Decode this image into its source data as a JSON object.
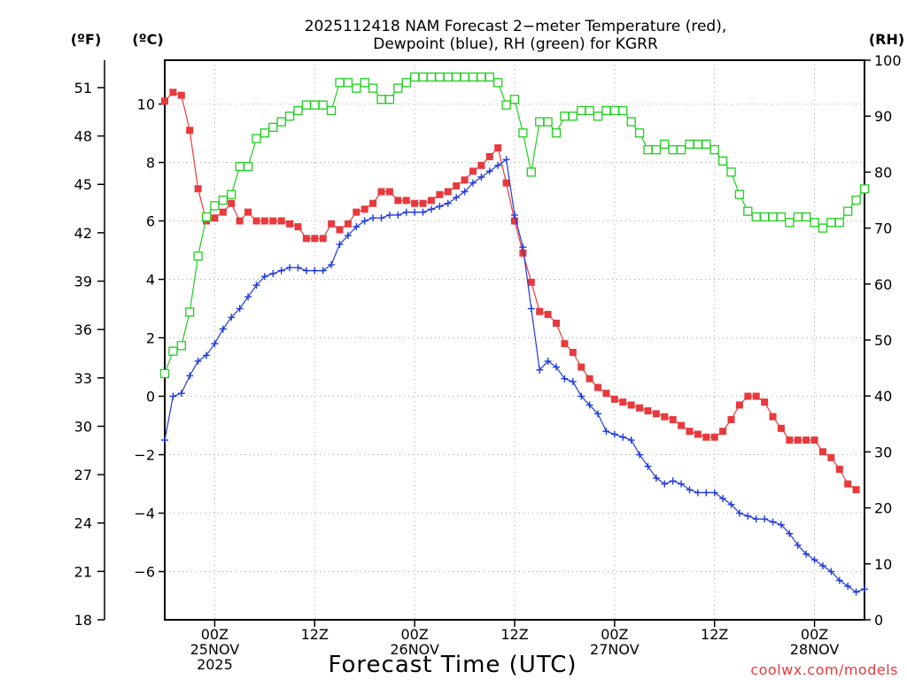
{
  "chart_data": {
    "type": "line",
    "title": "2025112418 NAM Forecast 2-meter Temperature (red), Dewpoint (blue), RH (green) for KGRR",
    "title_lines": [
      "2025112418 NAM Forecast 2−meter Temperature (red),",
      "Dewpoint (blue), RH (green) for KGRR"
    ],
    "xlabel": "Forecast Time (UTC)",
    "credit": "coolwx.com/models",
    "units": {
      "fahrenheit": "(ºF)",
      "celsius": "(ºC)",
      "rh": "(RH)"
    },
    "x_unit": "forecast hour",
    "x_range": [
      0,
      84
    ],
    "x_tick_labels": [
      {
        "hour": 6,
        "lines": [
          "00Z",
          "25NOV",
          "2025"
        ]
      },
      {
        "hour": 18,
        "lines": [
          "12Z"
        ]
      },
      {
        "hour": 30,
        "lines": [
          "00Z",
          "26NOV"
        ]
      },
      {
        "hour": 42,
        "lines": [
          "12Z"
        ]
      },
      {
        "hour": 54,
        "lines": [
          "00Z",
          "27NOV"
        ]
      },
      {
        "hour": 66,
        "lines": [
          "12Z"
        ]
      },
      {
        "hour": 78,
        "lines": [
          "00Z",
          "28NOV"
        ]
      }
    ],
    "celsius_axis": {
      "range": [
        -7.65,
        11.5
      ],
      "ticks": [
        -6,
        -4,
        -2,
        0,
        2,
        4,
        6,
        8,
        10
      ],
      "tick_labels": [
        "−6",
        "−4",
        "−2",
        "0",
        "2",
        "4",
        "6",
        "8",
        "10"
      ]
    },
    "fahrenheit_axis": {
      "range": [
        18,
        52.7
      ],
      "ticks": [
        18,
        21,
        24,
        27,
        30,
        33,
        36,
        39,
        42,
        45,
        48,
        51
      ]
    },
    "rh_axis": {
      "range": [
        0,
        100
      ],
      "ticks": [
        0,
        10,
        20,
        30,
        40,
        50,
        60,
        70,
        80,
        90,
        100
      ]
    },
    "grid": true,
    "series": [
      {
        "name": "Temperature",
        "color": "#e8393c",
        "axis": "celsius",
        "marker": "filled-square",
        "values": [
          [
            0,
            10.1
          ],
          [
            1,
            10.4
          ],
          [
            2,
            10.3
          ],
          [
            3,
            9.1
          ],
          [
            4,
            7.1
          ],
          [
            5,
            6.0
          ],
          [
            6,
            6.1
          ],
          [
            7,
            6.3
          ],
          [
            8,
            6.6
          ],
          [
            9,
            6.0
          ],
          [
            10,
            6.3
          ],
          [
            11,
            6.0
          ],
          [
            12,
            6.0
          ],
          [
            13,
            6.0
          ],
          [
            14,
            6.0
          ],
          [
            15,
            5.9
          ],
          [
            16,
            5.8
          ],
          [
            17,
            5.4
          ],
          [
            18,
            5.4
          ],
          [
            19,
            5.4
          ],
          [
            20,
            5.9
          ],
          [
            21,
            5.7
          ],
          [
            22,
            5.9
          ],
          [
            23,
            6.3
          ],
          [
            24,
            6.4
          ],
          [
            25,
            6.6
          ],
          [
            26,
            7.0
          ],
          [
            27,
            7.0
          ],
          [
            28,
            6.7
          ],
          [
            29,
            6.7
          ],
          [
            30,
            6.6
          ],
          [
            31,
            6.6
          ],
          [
            32,
            6.7
          ],
          [
            33,
            6.9
          ],
          [
            34,
            7.0
          ],
          [
            35,
            7.2
          ],
          [
            36,
            7.4
          ],
          [
            37,
            7.7
          ],
          [
            38,
            7.9
          ],
          [
            39,
            8.2
          ],
          [
            40,
            8.5
          ],
          [
            41,
            7.3
          ],
          [
            42,
            6.0
          ],
          [
            43,
            4.9
          ],
          [
            44,
            3.9
          ],
          [
            45,
            2.9
          ],
          [
            46,
            2.8
          ],
          [
            47,
            2.5
          ],
          [
            48,
            1.8
          ],
          [
            49,
            1.5
          ],
          [
            50,
            1.0
          ],
          [
            51,
            0.6
          ],
          [
            52,
            0.3
          ],
          [
            53,
            0.1
          ],
          [
            54,
            -0.1
          ],
          [
            55,
            -0.2
          ],
          [
            56,
            -0.3
          ],
          [
            57,
            -0.4
          ],
          [
            58,
            -0.5
          ],
          [
            59,
            -0.6
          ],
          [
            60,
            -0.7
          ],
          [
            61,
            -0.8
          ],
          [
            62,
            -1.0
          ],
          [
            63,
            -1.2
          ],
          [
            64,
            -1.3
          ],
          [
            65,
            -1.4
          ],
          [
            66,
            -1.4
          ],
          [
            67,
            -1.2
          ],
          [
            68,
            -0.8
          ],
          [
            69,
            -0.3
          ],
          [
            70,
            0.0
          ],
          [
            71,
            0.0
          ],
          [
            72,
            -0.2
          ],
          [
            73,
            -0.7
          ],
          [
            74,
            -1.1
          ],
          [
            75,
            -1.5
          ],
          [
            76,
            -1.5
          ],
          [
            77,
            -1.5
          ],
          [
            78,
            -1.5
          ],
          [
            79,
            -1.9
          ],
          [
            80,
            -2.1
          ],
          [
            81,
            -2.5
          ],
          [
            82,
            -3.0
          ],
          [
            83,
            -3.2
          ]
        ]
      },
      {
        "name": "Dewpoint",
        "color": "#1f3adb",
        "axis": "celsius",
        "marker": "plus",
        "values": [
          [
            0,
            -1.5
          ],
          [
            1,
            0.0
          ],
          [
            2,
            0.1
          ],
          [
            3,
            0.7
          ],
          [
            4,
            1.2
          ],
          [
            5,
            1.4
          ],
          [
            6,
            1.8
          ],
          [
            7,
            2.3
          ],
          [
            8,
            2.7
          ],
          [
            9,
            3.0
          ],
          [
            10,
            3.4
          ],
          [
            11,
            3.8
          ],
          [
            12,
            4.1
          ],
          [
            13,
            4.2
          ],
          [
            14,
            4.3
          ],
          [
            15,
            4.4
          ],
          [
            16,
            4.4
          ],
          [
            17,
            4.3
          ],
          [
            18,
            4.3
          ],
          [
            19,
            4.3
          ],
          [
            20,
            4.5
          ],
          [
            21,
            5.2
          ],
          [
            22,
            5.5
          ],
          [
            23,
            5.8
          ],
          [
            24,
            6.0
          ],
          [
            25,
            6.1
          ],
          [
            26,
            6.1
          ],
          [
            27,
            6.2
          ],
          [
            28,
            6.2
          ],
          [
            29,
            6.3
          ],
          [
            30,
            6.3
          ],
          [
            31,
            6.3
          ],
          [
            32,
            6.4
          ],
          [
            33,
            6.5
          ],
          [
            34,
            6.6
          ],
          [
            35,
            6.8
          ],
          [
            36,
            7.0
          ],
          [
            37,
            7.3
          ],
          [
            38,
            7.5
          ],
          [
            39,
            7.7
          ],
          [
            40,
            7.9
          ],
          [
            41,
            8.1
          ],
          [
            42,
            6.2
          ],
          [
            43,
            5.1
          ],
          [
            44,
            3.0
          ],
          [
            45,
            0.9
          ],
          [
            46,
            1.2
          ],
          [
            47,
            1.0
          ],
          [
            48,
            0.6
          ],
          [
            49,
            0.5
          ],
          [
            50,
            0.0
          ],
          [
            51,
            -0.3
          ],
          [
            52,
            -0.6
          ],
          [
            53,
            -1.2
          ],
          [
            54,
            -1.3
          ],
          [
            55,
            -1.4
          ],
          [
            56,
            -1.5
          ],
          [
            57,
            -2.0
          ],
          [
            58,
            -2.4
          ],
          [
            59,
            -2.8
          ],
          [
            60,
            -3.0
          ],
          [
            61,
            -2.9
          ],
          [
            62,
            -3.0
          ],
          [
            63,
            -3.2
          ],
          [
            64,
            -3.3
          ],
          [
            65,
            -3.3
          ],
          [
            66,
            -3.3
          ],
          [
            67,
            -3.5
          ],
          [
            68,
            -3.7
          ],
          [
            69,
            -4.0
          ],
          [
            70,
            -4.1
          ],
          [
            71,
            -4.2
          ],
          [
            72,
            -4.2
          ],
          [
            73,
            -4.3
          ],
          [
            74,
            -4.4
          ],
          [
            75,
            -4.7
          ],
          [
            76,
            -5.1
          ],
          [
            77,
            -5.4
          ],
          [
            78,
            -5.6
          ],
          [
            79,
            -5.8
          ],
          [
            80,
            -6.0
          ],
          [
            81,
            -6.3
          ],
          [
            82,
            -6.5
          ],
          [
            83,
            -6.7
          ],
          [
            84,
            -6.6
          ]
        ]
      },
      {
        "name": "RH",
        "color": "#1ecf1e",
        "axis": "rh",
        "marker": "open-square",
        "values": [
          [
            0,
            44
          ],
          [
            1,
            48
          ],
          [
            2,
            49
          ],
          [
            3,
            55
          ],
          [
            4,
            65
          ],
          [
            5,
            72
          ],
          [
            6,
            74
          ],
          [
            7,
            75
          ],
          [
            8,
            76
          ],
          [
            9,
            81
          ],
          [
            10,
            81
          ],
          [
            11,
            86
          ],
          [
            12,
            87
          ],
          [
            13,
            88
          ],
          [
            14,
            89
          ],
          [
            15,
            90
          ],
          [
            16,
            91
          ],
          [
            17,
            92
          ],
          [
            18,
            92
          ],
          [
            19,
            92
          ],
          [
            20,
            91
          ],
          [
            21,
            96
          ],
          [
            22,
            96
          ],
          [
            23,
            95
          ],
          [
            24,
            96
          ],
          [
            25,
            95
          ],
          [
            26,
            93
          ],
          [
            27,
            93
          ],
          [
            28,
            95
          ],
          [
            29,
            96
          ],
          [
            30,
            97
          ],
          [
            31,
            97
          ],
          [
            32,
            97
          ],
          [
            33,
            97
          ],
          [
            34,
            97
          ],
          [
            35,
            97
          ],
          [
            36,
            97
          ],
          [
            37,
            97
          ],
          [
            38,
            97
          ],
          [
            39,
            97
          ],
          [
            40,
            96
          ],
          [
            41,
            92
          ],
          [
            42,
            93
          ],
          [
            43,
            87
          ],
          [
            44,
            80
          ],
          [
            45,
            89
          ],
          [
            46,
            89
          ],
          [
            47,
            87
          ],
          [
            48,
            90
          ],
          [
            49,
            90
          ],
          [
            50,
            91
          ],
          [
            51,
            91
          ],
          [
            52,
            90
          ],
          [
            53,
            91
          ],
          [
            54,
            91
          ],
          [
            55,
            91
          ],
          [
            56,
            89
          ],
          [
            57,
            87
          ],
          [
            58,
            84
          ],
          [
            59,
            84
          ],
          [
            60,
            85
          ],
          [
            61,
            84
          ],
          [
            62,
            84
          ],
          [
            63,
            85
          ],
          [
            64,
            85
          ],
          [
            65,
            85
          ],
          [
            66,
            84
          ],
          [
            67,
            82
          ],
          [
            68,
            80
          ],
          [
            69,
            76
          ],
          [
            70,
            73
          ],
          [
            71,
            72
          ],
          [
            72,
            72
          ],
          [
            73,
            72
          ],
          [
            74,
            72
          ],
          [
            75,
            71
          ],
          [
            76,
            72
          ],
          [
            77,
            72
          ],
          [
            78,
            71
          ],
          [
            79,
            70
          ],
          [
            80,
            71
          ],
          [
            81,
            71
          ],
          [
            82,
            73
          ],
          [
            83,
            75
          ],
          [
            84,
            77
          ]
        ]
      }
    ]
  }
}
